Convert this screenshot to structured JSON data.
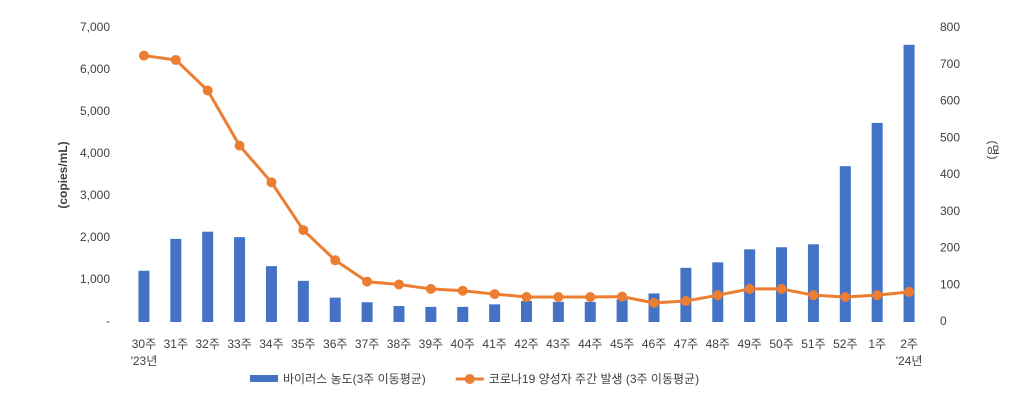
{
  "chart_data": {
    "type": "bar-line",
    "categories": [
      "30주",
      "31주",
      "32주",
      "33주",
      "34주",
      "35주",
      "36주",
      "37주",
      "38주",
      "39주",
      "40주",
      "41주",
      "42주",
      "43주",
      "44주",
      "45주",
      "46주",
      "47주",
      "48주",
      "49주",
      "50주",
      "51주",
      "52주",
      "1주",
      "2주"
    ],
    "x_group_labels": [
      "'23년",
      null,
      null,
      null,
      null,
      null,
      null,
      null,
      null,
      null,
      null,
      null,
      null,
      null,
      null,
      null,
      null,
      null,
      null,
      null,
      null,
      null,
      null,
      null,
      "'24년"
    ],
    "ylabel": "(copies/mL)",
    "y2label": "(명)",
    "ylim": [
      0,
      7000
    ],
    "yticks": [
      {
        "value": 0,
        "label": "-"
      },
      {
        "value": 1000,
        "label": "1,000"
      },
      {
        "value": 2000,
        "label": "2,000"
      },
      {
        "value": 3000,
        "label": "3,000"
      },
      {
        "value": 4000,
        "label": "4,000"
      },
      {
        "value": 5000,
        "label": "5,000"
      },
      {
        "value": 6000,
        "label": "6,000"
      },
      {
        "value": 7000,
        "label": "7,000"
      }
    ],
    "y2lim": [
      0,
      800
    ],
    "y2ticks": [
      0,
      100,
      200,
      300,
      400,
      500,
      600,
      700,
      800
    ],
    "legend": "bottom",
    "series": [
      {
        "name": "바이러스 농도(3주 이동평균)",
        "type": "bar",
        "color": "#4472c4",
        "values": [
          1220,
          1980,
          2150,
          2020,
          1330,
          980,
          580,
          470,
          380,
          360,
          360,
          420,
          500,
          480,
          480,
          540,
          680,
          1290,
          1420,
          1730,
          1780,
          1850,
          3710,
          4740,
          6600
        ]
      },
      {
        "name": "코로나19 양성자 주간 발생 (3주 이동평균)",
        "type": "line",
        "axis": "y2",
        "color": "#ed7d31",
        "values": [
          725,
          713,
          630,
          480,
          380,
          250,
          168,
          110,
          102,
          90,
          85,
          76,
          68,
          68,
          68,
          69,
          52,
          57,
          73,
          90,
          90,
          73,
          68,
          73,
          82
        ]
      }
    ]
  }
}
